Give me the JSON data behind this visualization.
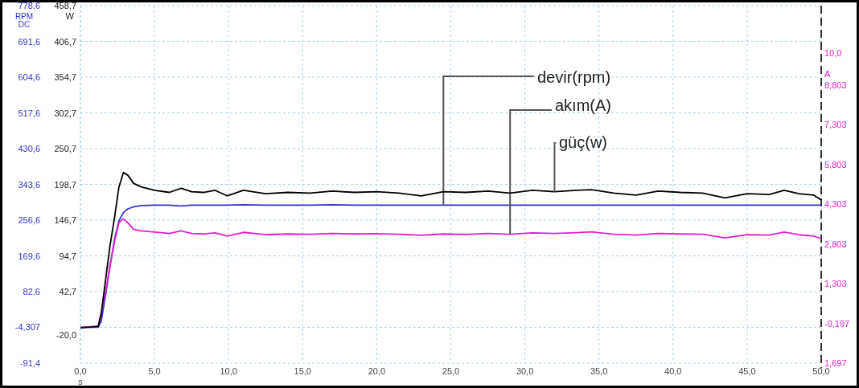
{
  "chart_data": {
    "type": "line",
    "xlabel": "s",
    "ylabel": "RPM DC",
    "y2label": "W",
    "y3label": "A",
    "x": [
      0,
      1.2,
      1.4,
      1.7,
      2.0,
      2.3,
      2.6,
      2.9,
      3.2,
      3.6,
      4.1,
      5,
      6,
      6.8,
      7.5,
      8.3,
      9.1,
      9.9,
      11,
      12.5,
      14,
      15.5,
      17,
      18.5,
      20,
      21.5,
      23,
      24.5,
      26,
      27.5,
      29,
      30.5,
      32,
      33.5,
      34.5,
      36,
      37.5,
      39,
      40.5,
      42,
      43.5,
      45,
      46.5,
      47.5,
      48.5,
      49.5,
      50
    ],
    "xlim": [
      0,
      50
    ],
    "xticks": [
      {
        "value": 0,
        "label": "0,0"
      },
      {
        "value": 5,
        "label": "5,0"
      },
      {
        "value": 10,
        "label": "10,0"
      },
      {
        "value": 15,
        "label": "15,0"
      },
      {
        "value": 20,
        "label": "20,0"
      },
      {
        "value": 25,
        "label": "25,0"
      },
      {
        "value": 30,
        "label": "30,0"
      },
      {
        "value": 35,
        "label": "35,0"
      },
      {
        "value": 40,
        "label": "40,0"
      },
      {
        "value": 45,
        "label": "45,0"
      },
      {
        "value": 50,
        "label": "50,0"
      }
    ],
    "ylim": [
      -91.4,
      778.6
    ],
    "yticks": [
      {
        "value": -91.4,
        "label": "-91,4"
      },
      {
        "value": -4.307,
        "label": "-4,307"
      },
      {
        "value": 82.6,
        "label": "82,6"
      },
      {
        "value": 169.6,
        "label": "169,6"
      },
      {
        "value": 256.6,
        "label": "256,6"
      },
      {
        "value": 343.6,
        "label": "343,6"
      },
      {
        "value": 430.6,
        "label": "430,6"
      },
      {
        "value": 517.6,
        "label": "517,6"
      },
      {
        "value": 604.6,
        "label": "604,6"
      },
      {
        "value": 691.6,
        "label": "691,6"
      },
      {
        "value": 778.6,
        "label": "778,6"
      }
    ],
    "y2lim": [
      -61.3,
      458.7
    ],
    "y2ticks": [
      {
        "value": -20,
        "label": "-20,0"
      },
      {
        "value": 42.7,
        "label": "42,7"
      },
      {
        "value": 94.7,
        "label": "94,7"
      },
      {
        "value": 146.7,
        "label": "146,7"
      },
      {
        "value": 198.7,
        "label": "198,7"
      },
      {
        "value": 250.7,
        "label": "250,7"
      },
      {
        "value": 302.7,
        "label": "302,7"
      },
      {
        "value": 354.7,
        "label": "354,7"
      },
      {
        "value": 406.7,
        "label": "406,7"
      },
      {
        "value": 458.7,
        "label": "458,7"
      }
    ],
    "y3lim": [
      -1.697,
      11.803
    ],
    "y3ticks": [
      {
        "value": -1.697,
        "label": "1,697"
      },
      {
        "value": -0.197,
        "label": "-0,197"
      },
      {
        "value": 1.303,
        "label": "1,303"
      },
      {
        "value": 2.803,
        "label": "2,803"
      },
      {
        "value": 4.303,
        "label": "4,303"
      },
      {
        "value": 5.803,
        "label": "5,803"
      },
      {
        "value": 7.303,
        "label": "7,303"
      },
      {
        "value": 8.803,
        "label": "8,803"
      },
      {
        "value": 10,
        "label": "10,0"
      }
    ],
    "grid": true,
    "marker": "none",
    "line_style": "solid",
    "series": [
      {
        "name": "devir(rpm)",
        "color": "#3333cc",
        "values": [
          -4,
          -4,
          10,
          75,
          145,
          210,
          255,
          275,
          284,
          289,
          292,
          293,
          293,
          291,
          293,
          293,
          293,
          293,
          294,
          293,
          293,
          293,
          294,
          293,
          293,
          293,
          293,
          293,
          293,
          293,
          293,
          293,
          293,
          293,
          293,
          293,
          293,
          293,
          293,
          293,
          293,
          293,
          293,
          293,
          293,
          293,
          293
        ]
      },
      {
        "name": "akım(A)",
        "color": "#e020d0",
        "axis": "y3",
        "values": [
          -0.36,
          -0.3,
          0.2,
          1.0,
          2.0,
          2.9,
          3.6,
          3.75,
          3.6,
          3.35,
          3.3,
          3.25,
          3.2,
          3.3,
          3.2,
          3.18,
          3.22,
          3.1,
          3.24,
          3.15,
          3.18,
          3.17,
          3.2,
          3.18,
          3.19,
          3.17,
          3.13,
          3.18,
          3.16,
          3.2,
          3.17,
          3.22,
          3.2,
          3.23,
          3.26,
          3.17,
          3.14,
          3.2,
          3.18,
          3.17,
          3.03,
          3.15,
          3.14,
          3.25,
          3.15,
          3.1,
          3.0
        ]
      },
      {
        "name": "güç(w)",
        "color": "#000000",
        "axis": "y2",
        "values": [
          -10,
          -8,
          10,
          60,
          110,
          150,
          195,
          216,
          212,
          200,
          195,
          190,
          187,
          193,
          188,
          187,
          190,
          182,
          190,
          185,
          187,
          186,
          189,
          187,
          188,
          186,
          182,
          188,
          187,
          189,
          186,
          190,
          188,
          190,
          191,
          186,
          183,
          189,
          187,
          186,
          179,
          185,
          184,
          190,
          185,
          183,
          176
        ]
      }
    ]
  }
}
